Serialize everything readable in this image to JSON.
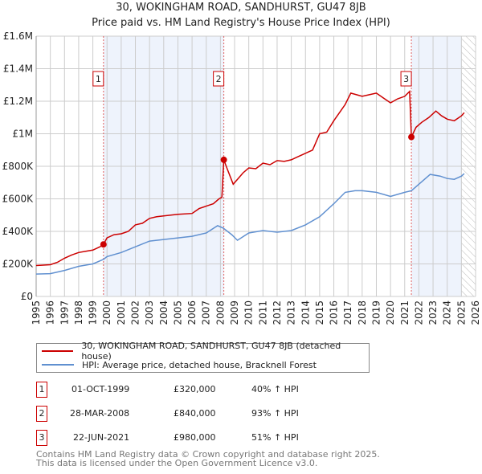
{
  "chart_data": {
    "type": "line",
    "title": "30, WOKINGHAM ROAD, SANDHURST, GU47 8JB",
    "subtitle": "Price paid vs. HM Land Registry's House Price Index (HPI)",
    "xlim": [
      1995,
      2026
    ],
    "ylim": [
      0,
      1600000
    ],
    "x_ticks": [
      "1995",
      "1996",
      "1997",
      "1998",
      "1999",
      "2000",
      "2001",
      "2002",
      "2003",
      "2004",
      "2005",
      "2006",
      "2007",
      "2008",
      "2009",
      "2010",
      "2011",
      "2012",
      "2013",
      "2014",
      "2015",
      "2016",
      "2017",
      "2018",
      "2019",
      "2020",
      "2021",
      "2022",
      "2023",
      "2024",
      "2025",
      "2026"
    ],
    "y_ticks": [
      {
        "v": 0,
        "label": "£0"
      },
      {
        "v": 200000,
        "label": "£200K"
      },
      {
        "v": 400000,
        "label": "£400K"
      },
      {
        "v": 600000,
        "label": "£600K"
      },
      {
        "v": 800000,
        "label": "£800K"
      },
      {
        "v": 1000000,
        "label": "£1M"
      },
      {
        "v": 1200000,
        "label": "£1.2M"
      },
      {
        "v": 1400000,
        "label": "£1.4M"
      },
      {
        "v": 1600000,
        "label": "£1.6M"
      }
    ],
    "grid": true,
    "shaded_ranges": [
      [
        1999.75,
        2008.24
      ],
      [
        2021.47,
        2025.0
      ]
    ],
    "hatched_from": 2025.0,
    "series": [
      {
        "name": "30, WOKINGHAM ROAD, SANDHURST, GU47 8JB (detached house)",
        "color": "#cc0000",
        "x": [
          1995,
          1996,
          1996.5,
          1997,
          1997.5,
          1998,
          1998.5,
          1999,
          1999.5,
          1999.75,
          2000,
          2000.5,
          2001,
          2001.5,
          2002,
          2002.5,
          2003,
          2003.5,
          2004,
          2005,
          2006,
          2006.5,
          2007,
          2007.5,
          2007.9,
          2008.1,
          2008.24,
          2008.5,
          2008.9,
          2009.2,
          2009.6,
          2010,
          2010.5,
          2011,
          2011.5,
          2012,
          2012.5,
          2013,
          2013.5,
          2014,
          2014.5,
          2015,
          2015.5,
          2016,
          2016.4,
          2016.8,
          2017.2,
          2017.6,
          2018,
          2018.5,
          2019,
          2019.5,
          2020,
          2020.5,
          2021,
          2021.35,
          2021.47,
          2021.8,
          2022.2,
          2022.7,
          2023.2,
          2023.6,
          2024,
          2024.5,
          2025,
          2025.2
        ],
        "y": [
          190000,
          195000,
          210000,
          235000,
          255000,
          270000,
          278000,
          285000,
          305000,
          320000,
          360000,
          380000,
          385000,
          400000,
          440000,
          450000,
          480000,
          490000,
          495000,
          505000,
          510000,
          540000,
          555000,
          570000,
          600000,
          610000,
          840000,
          780000,
          690000,
          720000,
          760000,
          790000,
          785000,
          820000,
          810000,
          835000,
          830000,
          840000,
          860000,
          880000,
          900000,
          1000000,
          1010000,
          1080000,
          1130000,
          1180000,
          1250000,
          1240000,
          1230000,
          1240000,
          1250000,
          1220000,
          1190000,
          1215000,
          1230000,
          1260000,
          980000,
          1040000,
          1070000,
          1100000,
          1140000,
          1110000,
          1090000,
          1080000,
          1110000,
          1130000
        ]
      },
      {
        "name": "HPI: Average price, detached house, Bracknell Forest",
        "color": "#6090d0",
        "x": [
          1995,
          1996,
          1997,
          1998,
          1999,
          1999.75,
          2000,
          2001,
          2002,
          2003,
          2004,
          2005,
          2006,
          2007,
          2007.8,
          2008.2,
          2008.8,
          2009.2,
          2010,
          2011,
          2012,
          2013,
          2014,
          2015,
          2016,
          2016.8,
          2017.5,
          2018,
          2019,
          2020,
          2021,
          2021.47,
          2022,
          2022.8,
          2023.5,
          2024,
          2024.5,
          2025,
          2025.2
        ],
        "y": [
          138000,
          140000,
          160000,
          185000,
          200000,
          228000,
          245000,
          270000,
          305000,
          340000,
          350000,
          360000,
          370000,
          390000,
          435000,
          420000,
          380000,
          345000,
          390000,
          405000,
          395000,
          405000,
          440000,
          490000,
          570000,
          640000,
          650000,
          650000,
          640000,
          615000,
          640000,
          650000,
          690000,
          750000,
          740000,
          725000,
          720000,
          740000,
          755000
        ]
      }
    ],
    "markers": [
      {
        "label": "1",
        "x": 1999.75,
        "y": 320000
      },
      {
        "label": "2",
        "x": 2008.24,
        "y": 840000
      },
      {
        "label": "3",
        "x": 2021.47,
        "y": 980000
      }
    ]
  },
  "legend": [
    "30, WOKINGHAM ROAD, SANDHURST, GU47 8JB (detached house)",
    "HPI: Average price, detached house, Bracknell Forest"
  ],
  "transactions": [
    {
      "num": "1",
      "date": "01-OCT-1999",
      "price": "£320,000",
      "hpi": "40% ↑ HPI"
    },
    {
      "num": "2",
      "date": "28-MAR-2008",
      "price": "£840,000",
      "hpi": "93% ↑ HPI"
    },
    {
      "num": "3",
      "date": "22-JUN-2021",
      "price": "£980,000",
      "hpi": "51% ↑ HPI"
    }
  ],
  "footer": [
    "Contains HM Land Registry data © Crown copyright and database right 2025.",
    "This data is licensed under the Open Government Licence v3.0."
  ]
}
